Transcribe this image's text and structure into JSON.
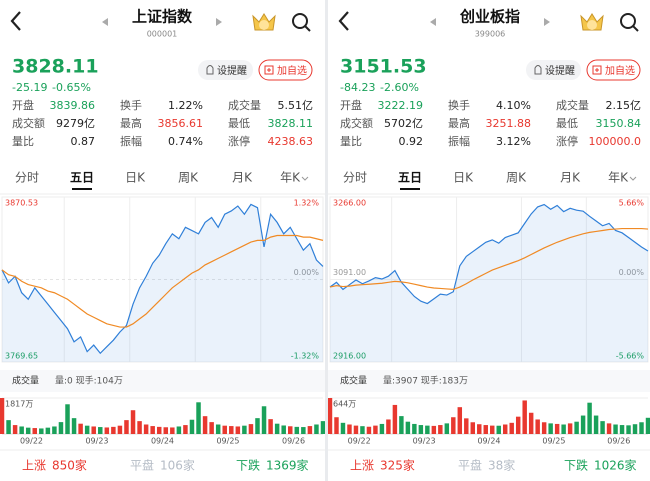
{
  "panels": [
    {
      "title": "上证指数",
      "code": "000001",
      "price": "3828.11",
      "change": "-25.19",
      "change_pct": "-0.65%",
      "remind": "设提醒",
      "add": "加自选",
      "stats": [
        [
          {
            "label": "开盘",
            "value": "3839.86",
            "color": "#1aa15a"
          },
          {
            "label": "换手",
            "value": "1.22%"
          },
          {
            "label": "成交量",
            "value": "5.51亿"
          }
        ],
        [
          {
            "label": "成交额",
            "value": "9279亿"
          },
          {
            "label": "最高",
            "value": "3856.61",
            "color": "#e8382f"
          },
          {
            "label": "最低",
            "value": "3828.11",
            "color": "#1aa15a"
          }
        ],
        [
          {
            "label": "量比",
            "value": "0.87"
          },
          {
            "label": "振幅",
            "value": "0.74%"
          },
          {
            "label": "涨停",
            "value": "4238.63",
            "color": "#e8382f"
          }
        ]
      ],
      "tabs": [
        "分时",
        "五日",
        "日K",
        "周K",
        "月K",
        "年K"
      ],
      "active_tab": 1,
      "volume_label": "成交量",
      "volume_info": "量:0 现手:104万",
      "footer": [
        {
          "label": "上涨",
          "value": "850家",
          "color": "#e8382f"
        },
        {
          "label": "平盘",
          "value": "106家",
          "color": "#b5bcc6"
        },
        {
          "label": "下跌",
          "value": "1369家",
          "color": "#1aa15a"
        }
      ]
    },
    {
      "title": "创业板指",
      "code": "399006",
      "price": "3151.53",
      "change": "-84.23",
      "change_pct": "-2.60%",
      "remind": "设提醒",
      "add": "加自选",
      "stats": [
        [
          {
            "label": "开盘",
            "value": "3222.19",
            "color": "#1aa15a"
          },
          {
            "label": "换手",
            "value": "4.10%"
          },
          {
            "label": "成交量",
            "value": "2.15亿"
          }
        ],
        [
          {
            "label": "成交额",
            "value": "5702亿"
          },
          {
            "label": "最高",
            "value": "3251.88",
            "color": "#e8382f"
          },
          {
            "label": "最低",
            "value": "3150.84",
            "color": "#1aa15a"
          }
        ],
        [
          {
            "label": "量比",
            "value": "0.92"
          },
          {
            "label": "振幅",
            "value": "3.12%"
          },
          {
            "label": "涨停",
            "value": "100000.0",
            "color": "#e8382f"
          }
        ]
      ],
      "tabs": [
        "分时",
        "五日",
        "日K",
        "周K",
        "月K",
        "年K"
      ],
      "active_tab": 1,
      "volume_label": "成交量",
      "volume_info": "量:3907 现手:183万",
      "footer": [
        {
          "label": "上涨",
          "value": "325家",
          "color": "#e8382f"
        },
        {
          "label": "平盘",
          "value": "38家",
          "color": "#b5bcc6"
        },
        {
          "label": "下跌",
          "value": "1026家",
          "color": "#1aa15a"
        }
      ]
    }
  ],
  "chart_data": [
    {
      "type": "line",
      "xlim": [
        0,
        49
      ],
      "xticks": [
        {
          "value": 4.5,
          "label": "09/22"
        },
        {
          "value": 14.5,
          "label": "09/23"
        },
        {
          "value": 24.5,
          "label": "09/24"
        },
        {
          "value": 34.5,
          "label": "09/25"
        },
        {
          "value": 44.5,
          "label": "09/26"
        }
      ],
      "ylim": [
        3769.65,
        3870.53
      ],
      "yticks": [
        3769.65,
        3870.53
      ],
      "y2lim": [
        -1.32,
        1.32
      ],
      "y2ticks": [
        {
          "value": 1.32,
          "label": "1.32%"
        },
        {
          "value": 0,
          "label": "0.00%"
        },
        {
          "value": -1.32,
          "label": "-1.32%"
        }
      ],
      "series": [
        {
          "color": "#2f7fd8",
          "values": [
            3826,
            3818,
            3822,
            3812,
            3808,
            3815,
            3810,
            3805,
            3800,
            3795,
            3790,
            3782,
            3785,
            3776,
            3780,
            3775,
            3779,
            3783,
            3788,
            3792,
            3805,
            3815,
            3822,
            3830,
            3835,
            3842,
            3848,
            3845,
            3852,
            3850,
            3848,
            3855,
            3858,
            3852,
            3860,
            3862,
            3865,
            3860,
            3866,
            3864,
            3840,
            3860,
            3855,
            3848,
            3852,
            3845,
            3838,
            3842,
            3832,
            3828.11
          ]
        },
        {
          "color": "#f08a24",
          "values": [
            3826,
            3823,
            3822,
            3819,
            3817,
            3816,
            3815,
            3813,
            3812,
            3810,
            3808,
            3805,
            3802,
            3799,
            3797,
            3795,
            3793,
            3792,
            3791,
            3791,
            3793,
            3796,
            3799,
            3803,
            3807,
            3811,
            3815,
            3818,
            3821,
            3824,
            3826,
            3829,
            3831,
            3833,
            3835,
            3837,
            3839,
            3841,
            3843,
            3844,
            3844,
            3846,
            3847,
            3847,
            3847,
            3847,
            3846,
            3846,
            3845,
            3844
          ]
        }
      ]
    },
    {
      "type": "bar",
      "xlim": [
        0,
        49
      ],
      "xticks": [
        {
          "value": 4.5,
          "label": "09/22"
        },
        {
          "value": 14.5,
          "label": "09/23"
        },
        {
          "value": 24.5,
          "label": "09/24"
        },
        {
          "value": 34.5,
          "label": "09/25"
        },
        {
          "value": 44.5,
          "label": "09/26"
        }
      ],
      "ylim": [
        0,
        1817
      ],
      "yticks": [
        {
          "value": 1817,
          "label": "1817万"
        }
      ],
      "values": [
        1817,
        700,
        450,
        380,
        320,
        300,
        280,
        320,
        380,
        600,
        1500,
        800,
        520,
        420,
        380,
        350,
        330,
        360,
        420,
        700,
        1200,
        650,
        480,
        400,
        360,
        340,
        330,
        380,
        450,
        720,
        1600,
        900,
        600,
        480,
        420,
        400,
        380,
        420,
        500,
        800,
        1400,
        750,
        520,
        430,
        390,
        360,
        350,
        400,
        480,
        650
      ]
    },
    {
      "type": "line",
      "xlim": [
        0,
        49
      ],
      "xticks": [
        {
          "value": 4.5,
          "label": "09/22"
        },
        {
          "value": 14.5,
          "label": "09/23"
        },
        {
          "value": 24.5,
          "label": "09/24"
        },
        {
          "value": 34.5,
          "label": "09/25"
        },
        {
          "value": 44.5,
          "label": "09/26"
        }
      ],
      "ylim": [
        2916.0,
        3266.0
      ],
      "yticks": [
        {
          "value": 2916,
          "label": "2916.00"
        },
        {
          "value": 3091,
          "label": "3091.00"
        },
        {
          "value": 3266,
          "label": "3266.00"
        }
      ],
      "y2lim": [
        -5.66,
        5.66
      ],
      "y2ticks": [
        {
          "value": 5.66,
          "label": "5.66%"
        },
        {
          "value": 0,
          "label": "0.00%"
        },
        {
          "value": -5.66,
          "label": "-5.66%"
        }
      ],
      "series": [
        {
          "color": "#2f7fd8",
          "values": [
            3075,
            3085,
            3070,
            3080,
            3090,
            3082,
            3088,
            3095,
            3092,
            3098,
            3110,
            3085,
            3070,
            3055,
            3045,
            3040,
            3050,
            3060,
            3058,
            3065,
            3120,
            3140,
            3150,
            3160,
            3170,
            3175,
            3168,
            3180,
            3185,
            3190,
            3210,
            3230,
            3245,
            3250,
            3240,
            3248,
            3235,
            3242,
            3238,
            3236,
            3225,
            3215,
            3205,
            3210,
            3195,
            3190,
            3180,
            3170,
            3160,
            3151.53
          ]
        },
        {
          "color": "#f08a24",
          "values": [
            3075,
            3078,
            3076,
            3077,
            3079,
            3080,
            3081,
            3082,
            3083,
            3085,
            3087,
            3086,
            3084,
            3081,
            3078,
            3075,
            3073,
            3072,
            3071,
            3070,
            3075,
            3082,
            3090,
            3097,
            3104,
            3111,
            3116,
            3121,
            3126,
            3131,
            3137,
            3144,
            3151,
            3158,
            3164,
            3170,
            3175,
            3180,
            3184,
            3188,
            3191,
            3193,
            3195,
            3197,
            3198,
            3199,
            3199,
            3199,
            3199,
            3198
          ]
        }
      ]
    },
    {
      "type": "bar",
      "xlim": [
        0,
        49
      ],
      "xticks": [
        {
          "value": 4.5,
          "label": "09/22"
        },
        {
          "value": 14.5,
          "label": "09/23"
        },
        {
          "value": 24.5,
          "label": "09/24"
        },
        {
          "value": 34.5,
          "label": "09/25"
        },
        {
          "value": 44.5,
          "label": "09/26"
        }
      ],
      "ylim": [
        0,
        644
      ],
      "yticks": [
        {
          "value": 644,
          "label": "644万"
        }
      ],
      "values": [
        644,
        300,
        200,
        170,
        150,
        140,
        130,
        150,
        180,
        260,
        520,
        320,
        220,
        180,
        160,
        150,
        145,
        160,
        190,
        300,
        480,
        280,
        210,
        175,
        160,
        150,
        148,
        170,
        200,
        310,
        600,
        380,
        260,
        210,
        190,
        180,
        170,
        190,
        220,
        330,
        560,
        330,
        230,
        190,
        170,
        160,
        155,
        175,
        210,
        290
      ]
    }
  ]
}
